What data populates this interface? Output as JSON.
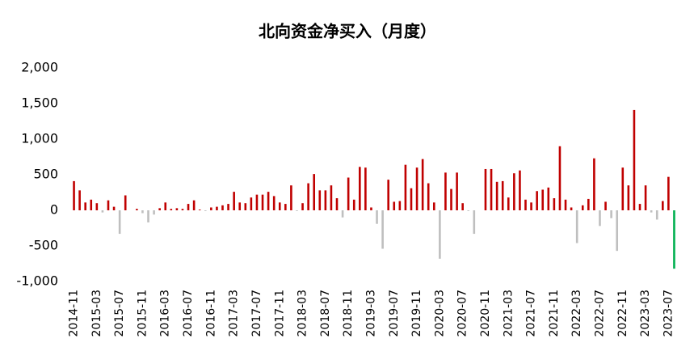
{
  "chart_data": {
    "type": "bar",
    "title": "北向资金净买入（月度）",
    "categories": [
      "2014-11",
      null,
      null,
      null,
      "2015-03",
      null,
      null,
      null,
      "2015-07",
      null,
      null,
      null,
      "2015-11",
      null,
      null,
      null,
      "2016-03",
      null,
      null,
      null,
      "2016-07",
      null,
      null,
      null,
      "2016-11",
      null,
      null,
      null,
      "2017-03",
      null,
      null,
      null,
      "2017-07",
      null,
      null,
      null,
      "2017-11",
      null,
      null,
      null,
      "2018-03",
      null,
      null,
      null,
      "2018-07",
      null,
      null,
      null,
      "2018-11",
      null,
      null,
      null,
      "2019-03",
      null,
      null,
      null,
      "2019-07",
      null,
      null,
      null,
      "2019-11",
      null,
      null,
      null,
      "2020-03",
      null,
      null,
      null,
      "2020-07",
      null,
      null,
      null,
      "2020-11",
      null,
      null,
      null,
      "2021-03",
      null,
      null,
      null,
      "2021-07",
      null,
      null,
      null,
      "2021-11",
      null,
      null,
      null,
      "2022-03",
      null,
      null,
      null,
      "2022-07",
      null,
      null,
      null,
      "2022-11",
      null,
      null,
      null,
      "2023-03",
      null,
      null,
      null,
      "2023-07",
      null
    ],
    "values": [
      410,
      280,
      110,
      150,
      100,
      -30,
      140,
      50,
      -330,
      210,
      0,
      20,
      -40,
      -170,
      -60,
      30,
      110,
      20,
      30,
      20,
      90,
      140,
      10,
      -10,
      40,
      50,
      70,
      90,
      260,
      110,
      100,
      180,
      220,
      220,
      260,
      200,
      110,
      90,
      350,
      -10,
      100,
      380,
      510,
      280,
      280,
      350,
      170,
      -100,
      460,
      150,
      610,
      600,
      40,
      -190,
      -540,
      430,
      120,
      130,
      640,
      310,
      600,
      720,
      380,
      110,
      -680,
      530,
      300,
      530,
      100,
      -10,
      -330,
      0,
      580,
      580,
      400,
      410,
      180,
      520,
      560,
      150,
      110,
      270,
      290,
      320,
      170,
      900,
      150,
      40,
      -460,
      70,
      160,
      730,
      -220,
      120,
      -110,
      -570,
      600,
      350,
      1410,
      90,
      350,
      -30,
      -130,
      130,
      470,
      -820
    ],
    "colors": [
      "#c00000",
      "#c00000",
      "#c00000",
      "#c00000",
      "#c00000",
      "#bfbfbf",
      "#c00000",
      "#c00000",
      "#bfbfbf",
      "#c00000",
      "#c00000",
      "#c00000",
      "#bfbfbf",
      "#bfbfbf",
      "#bfbfbf",
      "#c00000",
      "#c00000",
      "#c00000",
      "#c00000",
      "#c00000",
      "#c00000",
      "#c00000",
      "#c00000",
      "#bfbfbf",
      "#c00000",
      "#c00000",
      "#c00000",
      "#c00000",
      "#c00000",
      "#c00000",
      "#c00000",
      "#c00000",
      "#c00000",
      "#c00000",
      "#c00000",
      "#c00000",
      "#c00000",
      "#c00000",
      "#c00000",
      "#bfbfbf",
      "#c00000",
      "#c00000",
      "#c00000",
      "#c00000",
      "#c00000",
      "#c00000",
      "#c00000",
      "#bfbfbf",
      "#c00000",
      "#c00000",
      "#c00000",
      "#c00000",
      "#c00000",
      "#bfbfbf",
      "#bfbfbf",
      "#c00000",
      "#c00000",
      "#c00000",
      "#c00000",
      "#c00000",
      "#c00000",
      "#c00000",
      "#c00000",
      "#c00000",
      "#bfbfbf",
      "#c00000",
      "#c00000",
      "#c00000",
      "#c00000",
      "#bfbfbf",
      "#bfbfbf",
      "#c00000",
      "#c00000",
      "#c00000",
      "#c00000",
      "#c00000",
      "#c00000",
      "#c00000",
      "#c00000",
      "#c00000",
      "#c00000",
      "#c00000",
      "#c00000",
      "#c00000",
      "#c00000",
      "#c00000",
      "#c00000",
      "#c00000",
      "#bfbfbf",
      "#c00000",
      "#c00000",
      "#c00000",
      "#bfbfbf",
      "#c00000",
      "#bfbfbf",
      "#bfbfbf",
      "#c00000",
      "#c00000",
      "#c00000",
      "#c00000",
      "#c00000",
      "#bfbfbf",
      "#bfbfbf",
      "#c00000",
      "#c00000",
      "#00b050"
    ],
    "ylim": [
      -1000,
      2000
    ],
    "yticks": [
      {
        "value": -1000,
        "label": "-1,000"
      },
      -500,
      0,
      500,
      {
        "value": 1000,
        "label": "1,000"
      },
      {
        "value": 1500,
        "label": "1,500"
      },
      {
        "value": 2000,
        "label": "2,000"
      }
    ]
  }
}
